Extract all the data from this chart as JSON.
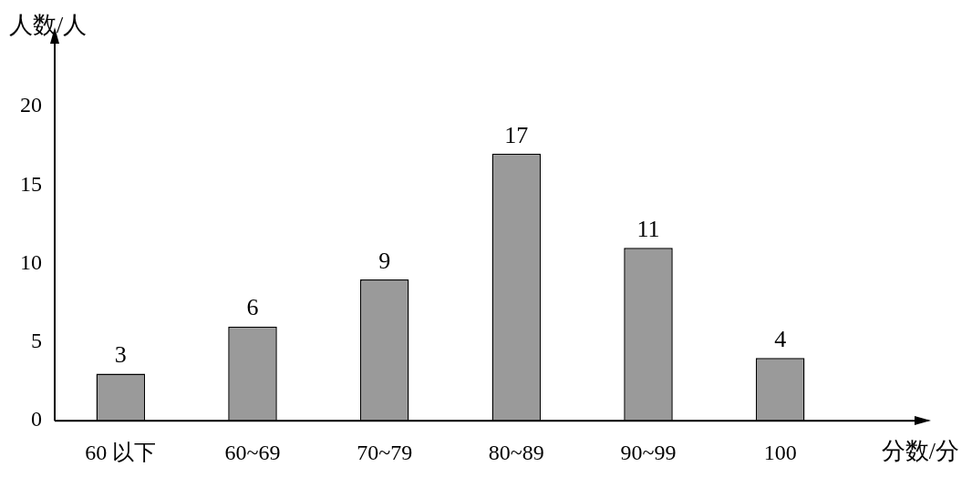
{
  "chart_data": {
    "type": "bar",
    "xlabel": "分数/分",
    "ylabel": "人数/人",
    "categories": [
      "60 以下",
      "60~69",
      "70~79",
      "80~89",
      "90~99",
      "100"
    ],
    "values": [
      3,
      6,
      9,
      17,
      11,
      4
    ],
    "color": "#9a9a9a",
    "ylim": [
      0,
      24
    ],
    "yticks": [
      0,
      5,
      10,
      15,
      20
    ],
    "grid": false,
    "legend": false,
    "data_labels": true
  }
}
